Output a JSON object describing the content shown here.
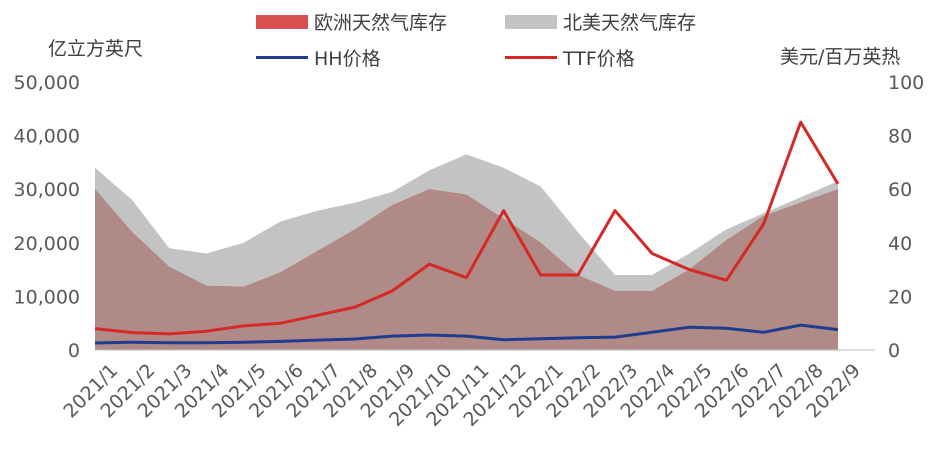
{
  "legend": {
    "eu": "欧洲天然气库存",
    "na": "北美天然气库存",
    "hh": "HH价格",
    "ttf": "TTF价格"
  },
  "axis_titles": {
    "left": "亿立方英尺",
    "right": "美元/百万英热"
  },
  "colors": {
    "eu_fill": "#d94f4f",
    "na_fill": "#c3c3c3",
    "overlap_fill": "#b08a87",
    "hh": "#1f3d8c",
    "ttf": "#d42a27",
    "axis_text": "#595959"
  },
  "chart_data": {
    "type": "area",
    "x": [
      "2021/1",
      "2021/2",
      "2021/3",
      "2021/4",
      "2021/5",
      "2021/6",
      "2021/7",
      "2021/8",
      "2021/9",
      "2021/10",
      "2021/11",
      "2021/12",
      "2022/1",
      "2022/2",
      "2022/3",
      "2022/4",
      "2022/5",
      "2022/6",
      "2022/7",
      "2022/8",
      "2022/9"
    ],
    "xlim": [
      "2021/1",
      "2022/10"
    ],
    "ylim_left": [
      0,
      50000
    ],
    "ylim_right": [
      0,
      100
    ],
    "yticks_left": [
      "0",
      "10,000",
      "20,000",
      "30,000",
      "40,000",
      "50,000"
    ],
    "yticks_right": [
      "0",
      "20",
      "40",
      "60",
      "80",
      "100"
    ],
    "series": [
      {
        "name": "欧洲天然气库存",
        "axis": "left",
        "kind": "area",
        "values": [
          30000,
          22000,
          15500,
          12000,
          11800,
          14500,
          18500,
          22500,
          27000,
          30000,
          29000,
          24500,
          20000,
          14000,
          11000,
          11000,
          15000,
          20500,
          25000,
          27500,
          30000
        ]
      },
      {
        "name": "北美天然气库存",
        "axis": "left",
        "kind": "area",
        "values": [
          34000,
          28000,
          19000,
          18000,
          20000,
          24000,
          26000,
          27500,
          29500,
          33500,
          36500,
          34000,
          30500,
          22000,
          14000,
          14000,
          18000,
          22500,
          25500,
          28500,
          31500
        ]
      },
      {
        "name": "HH价格",
        "axis": "right",
        "kind": "line",
        "values": [
          2.6,
          2.9,
          2.7,
          2.7,
          2.9,
          3.2,
          3.7,
          4.1,
          5.2,
          5.6,
          5.2,
          3.8,
          4.2,
          4.6,
          4.8,
          6.6,
          8.5,
          8.1,
          6.6,
          9.3,
          7.6
        ]
      },
      {
        "name": "TTF价格",
        "axis": "right",
        "kind": "line",
        "values": [
          8,
          6.5,
          6,
          7,
          9,
          10,
          13,
          16,
          22,
          32,
          27,
          52,
          28,
          28,
          52,
          36,
          30,
          26,
          47,
          85,
          62
        ]
      }
    ]
  }
}
